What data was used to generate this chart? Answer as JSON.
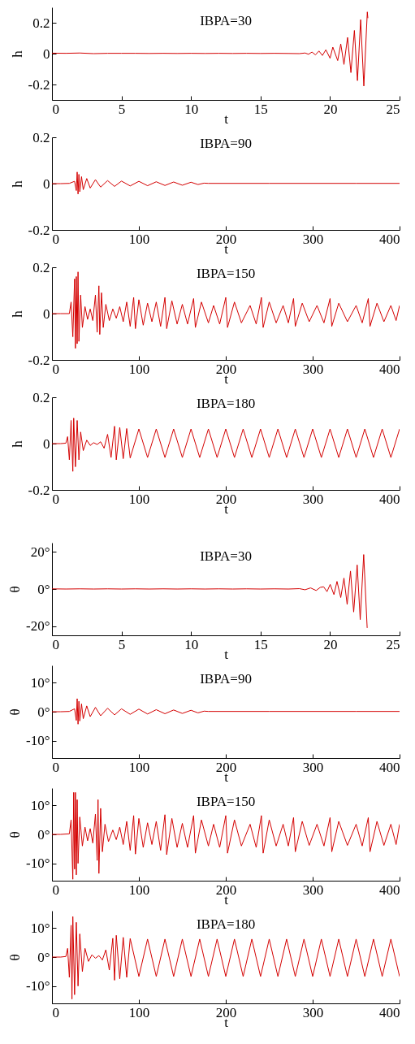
{
  "chart_data": [
    {
      "type": "line",
      "title": "IBPA=30",
      "xlabel": "t",
      "ylabel": "h",
      "xlim": [
        0,
        25
      ],
      "xticks": [
        0,
        5,
        10,
        15,
        20,
        25
      ],
      "ylim": [
        -0.3,
        0.3
      ],
      "yticks": [
        -0.2,
        0,
        0.2
      ],
      "legend": false,
      "grid": false,
      "x": [
        0,
        1,
        2,
        3,
        4,
        5,
        6,
        7,
        8,
        9,
        10,
        11,
        12,
        13,
        14,
        15,
        16,
        17,
        17.8,
        18.2,
        18.45,
        18.7,
        18.95,
        19.2,
        19.45,
        19.7,
        20.0,
        20.2,
        20.55,
        20.77,
        21.0,
        21.26,
        21.5,
        21.75,
        21.97,
        22.2,
        22.43,
        22.68,
        22.72
      ],
      "series": [
        {
          "color": "#d40000",
          "values": [
            0.003,
            0.002,
            0.004,
            0,
            0.002,
            0.002,
            0.002,
            0.001,
            0.002,
            0.001,
            0.002,
            0.001,
            0.002,
            0.001,
            0.002,
            0.001,
            0.002,
            0.001,
            0,
            0.004,
            -0.004,
            0.01,
            -0.008,
            0.017,
            -0.012,
            0.025,
            -0.03,
            0.042,
            -0.045,
            0.063,
            -0.07,
            0.105,
            -0.123,
            0.15,
            -0.175,
            0.22,
            -0.21,
            0.27,
            0.23
          ]
        }
      ]
    },
    {
      "type": "line",
      "title": "IBPA=90",
      "xlabel": "t",
      "ylabel": "h",
      "xlim": [
        0,
        400
      ],
      "xticks": [
        0,
        100,
        200,
        300,
        400
      ],
      "ylim": [
        -0.2,
        0.2
      ],
      "yticks": [
        -0.2,
        0,
        0.2
      ],
      "legend": false,
      "grid": false,
      "x": [
        0,
        10,
        20,
        26,
        28,
        29,
        30,
        31,
        32,
        34,
        36,
        40,
        44,
        50,
        56,
        64,
        72,
        80,
        90,
        100,
        110,
        120,
        130,
        140,
        150,
        160,
        168,
        175,
        180,
        200,
        250,
        300,
        350,
        400
      ],
      "series": [
        {
          "color": "#d40000",
          "values": [
            0,
            0,
            0.001,
            0.01,
            -0.03,
            0.05,
            -0.045,
            0.04,
            -0.035,
            0.03,
            -0.026,
            0.022,
            -0.019,
            0.017,
            -0.015,
            0.013,
            -0.012,
            0.011,
            -0.01,
            0.01,
            -0.009,
            0.008,
            -0.008,
            0.007,
            -0.007,
            0.006,
            -0.004,
            0.002,
            0.001,
            0.001,
            0.001,
            0.001,
            0.001,
            0.001
          ]
        }
      ]
    },
    {
      "type": "line",
      "title": "IBPA=150",
      "xlabel": "t",
      "ylabel": "h",
      "xlim": [
        0,
        400
      ],
      "xticks": [
        0,
        100,
        200,
        300,
        400
      ],
      "ylim": [
        -0.2,
        0.2
      ],
      "yticks": [
        -0.2,
        0,
        0.2
      ],
      "legend": false,
      "grid": false,
      "x": [
        0,
        10,
        20,
        22,
        24,
        26,
        27,
        28,
        29,
        30,
        31,
        33,
        35,
        38,
        41,
        44,
        47,
        50,
        52,
        54,
        55,
        57,
        59,
        62,
        66,
        70,
        74,
        78,
        82,
        86,
        90,
        94,
        96,
        100,
        105,
        110,
        115,
        120,
        125,
        130,
        132,
        138,
        144,
        150,
        156,
        163,
        165,
        172,
        180,
        186,
        193,
        200,
        202,
        210,
        218,
        228,
        235,
        241,
        243,
        250,
        258,
        266,
        272,
        278,
        280,
        288,
        296,
        305,
        313,
        320,
        322,
        330,
        340,
        350,
        357,
        364,
        366,
        374,
        382,
        390,
        396,
        400
      ],
      "series": [
        {
          "color": "#d40000",
          "values": [
            0,
            0,
            0,
            0.05,
            -0.1,
            0.15,
            -0.15,
            0.16,
            -0.13,
            0.18,
            -0.12,
            0.08,
            -0.06,
            0.03,
            -0.025,
            0.02,
            -0.03,
            0.08,
            -0.08,
            0.12,
            -0.09,
            0.09,
            -0.06,
            0.04,
            -0.03,
            0.02,
            -0.02,
            0.03,
            -0.035,
            0.05,
            -0.055,
            0.07,
            -0.065,
            0.06,
            -0.05,
            0.045,
            -0.035,
            0.05,
            -0.055,
            0.07,
            -0.065,
            0.055,
            -0.045,
            0.04,
            -0.045,
            0.065,
            -0.06,
            0.05,
            -0.04,
            0.035,
            -0.045,
            0.07,
            -0.06,
            0.05,
            -0.04,
            0.035,
            -0.045,
            0.07,
            -0.06,
            0.05,
            -0.04,
            0.035,
            -0.04,
            0.065,
            -0.055,
            0.045,
            -0.035,
            0.035,
            -0.04,
            0.065,
            -0.055,
            0.045,
            -0.035,
            0.035,
            -0.04,
            0.065,
            -0.055,
            0.045,
            -0.035,
            0.035,
            -0.03,
            0.035
          ]
        }
      ]
    },
    {
      "type": "line",
      "title": "IBPA=180",
      "xlabel": "t",
      "ylabel": "h",
      "xlim": [
        0,
        400
      ],
      "xticks": [
        0,
        100,
        200,
        300,
        400
      ],
      "ylim": [
        -0.2,
        0.2
      ],
      "yticks": [
        -0.2,
        0,
        0.2
      ],
      "legend": false,
      "grid": false,
      "x": [
        0,
        10,
        16,
        18,
        20,
        22,
        24,
        25,
        27,
        29,
        31,
        33,
        36,
        40,
        44,
        48,
        52,
        56,
        60,
        64,
        68,
        72,
        74,
        78,
        82,
        86,
        90,
        100,
        110,
        120,
        130,
        140,
        150,
        160,
        170,
        180,
        190,
        200,
        210,
        220,
        230,
        240,
        250,
        260,
        270,
        280,
        290,
        300,
        310,
        320,
        330,
        340,
        350,
        360,
        370,
        380,
        390,
        400
      ],
      "series": [
        {
          "color": "#d40000",
          "values": [
            0,
            0,
            0.002,
            0.03,
            -0.07,
            0.1,
            -0.12,
            0.11,
            -0.1,
            0.1,
            -0.07,
            0.05,
            -0.03,
            0.015,
            -0.008,
            0.004,
            -0.004,
            0.008,
            -0.02,
            0.04,
            -0.06,
            0.075,
            -0.07,
            0.07,
            -0.065,
            0.065,
            -0.062,
            0.063,
            -0.06,
            0.063,
            -0.06,
            0.063,
            -0.06,
            0.063,
            -0.06,
            0.063,
            -0.06,
            0.063,
            -0.06,
            0.063,
            -0.06,
            0.063,
            -0.06,
            0.063,
            -0.06,
            0.063,
            -0.06,
            0.063,
            -0.06,
            0.063,
            -0.06,
            0.063,
            -0.06,
            0.063,
            -0.06,
            0.063,
            -0.06,
            0.063
          ]
        }
      ]
    },
    {
      "type": "line",
      "title": "IBPA=30",
      "xlabel": "t",
      "ylabel": "θ",
      "xlim": [
        0,
        25
      ],
      "xticks": [
        0,
        5,
        10,
        15,
        20,
        25
      ],
      "ylim": [
        -25,
        25
      ],
      "yticks": [
        {
          "value": -20,
          "label": "-20°"
        },
        {
          "value": 0,
          "label": "0°"
        },
        {
          "value": 20,
          "label": "20°"
        }
      ],
      "legend": false,
      "grid": false,
      "x": [
        0,
        1,
        2,
        3,
        4,
        5,
        6,
        7,
        8,
        9,
        10,
        11,
        12,
        13,
        14,
        15,
        16,
        17,
        17.8,
        18.2,
        18.6,
        19.0,
        19.3,
        19.54,
        19.78,
        20.01,
        20.28,
        20.5,
        20.77,
        21.0,
        21.23,
        21.47,
        21.7,
        21.95,
        22.17,
        22.42,
        22.67
      ],
      "series": [
        {
          "color": "#d40000",
          "values": [
            0.1,
            0,
            0.1,
            0,
            0.1,
            0,
            0.1,
            0,
            0.1,
            0,
            0.1,
            0,
            0.1,
            0,
            0.1,
            0,
            0.1,
            0,
            0.2,
            -0.4,
            0.6,
            -0.8,
            0.9,
            1.2,
            -1.4,
            2.5,
            -3,
            4.1,
            -4.6,
            5.9,
            -8.3,
            9.7,
            -12.4,
            13,
            -16.5,
            18.6,
            -21
          ]
        }
      ]
    },
    {
      "type": "line",
      "title": "IBPA=90",
      "xlabel": "t",
      "ylabel": "θ",
      "xlim": [
        0,
        400
      ],
      "xticks": [
        0,
        100,
        200,
        300,
        400
      ],
      "ylim": [
        -16,
        16
      ],
      "yticks": [
        {
          "value": -10,
          "label": "-10°"
        },
        {
          "value": 0,
          "label": "0°"
        },
        {
          "value": 10,
          "label": "10°"
        }
      ],
      "legend": false,
      "grid": false,
      "x": [
        0,
        10,
        20,
        26,
        28,
        29,
        30,
        31,
        32,
        34,
        36,
        40,
        44,
        50,
        56,
        64,
        72,
        80,
        90,
        100,
        110,
        120,
        130,
        140,
        150,
        160,
        168,
        175,
        180,
        200,
        250,
        300,
        350,
        400
      ],
      "series": [
        {
          "color": "#d40000",
          "values": [
            0,
            0,
            0.1,
            1,
            -3,
            4.5,
            -4.3,
            3.6,
            -3.2,
            2.7,
            -2.4,
            2,
            -1.7,
            1.5,
            -1.4,
            1.2,
            -1.1,
            1,
            -0.9,
            0.9,
            -0.8,
            0.7,
            -0.7,
            0.6,
            -0.6,
            0.5,
            -0.4,
            0.2,
            0.1,
            0.1,
            0.1,
            0.1,
            0.1,
            0.1
          ]
        }
      ]
    },
    {
      "type": "line",
      "title": "IBPA=150",
      "xlabel": "t",
      "ylabel": "θ",
      "xlim": [
        0,
        400
      ],
      "xticks": [
        0,
        100,
        200,
        300,
        400
      ],
      "ylim": [
        -16,
        16
      ],
      "yticks": [
        {
          "value": -10,
          "label": "-10°"
        },
        {
          "value": 0,
          "label": "0°"
        },
        {
          "value": 10,
          "label": "10°"
        }
      ],
      "legend": false,
      "grid": false,
      "x": [
        0,
        10,
        20,
        22,
        24,
        25,
        26,
        27,
        28,
        29,
        30,
        32,
        35,
        38,
        41,
        44,
        47,
        50,
        52,
        53,
        54,
        56,
        58,
        61,
        65,
        70,
        74,
        78,
        82,
        86,
        90,
        94,
        96,
        100,
        105,
        110,
        115,
        120,
        125,
        130,
        132,
        138,
        144,
        150,
        156,
        163,
        165,
        172,
        180,
        186,
        193,
        200,
        202,
        210,
        218,
        228,
        235,
        241,
        243,
        250,
        258,
        266,
        272,
        278,
        280,
        288,
        296,
        305,
        313,
        320,
        322,
        330,
        340,
        350,
        357,
        364,
        366,
        374,
        382,
        390,
        396,
        400
      ],
      "series": [
        {
          "color": "#d40000",
          "values": [
            0,
            0,
            0.2,
            5,
            -15.5,
            14.5,
            -12,
            14.5,
            -14,
            12,
            -10,
            6,
            -4,
            2.5,
            -2.2,
            2,
            -3,
            7,
            -9,
            12,
            -13.5,
            9,
            -6,
            3.5,
            -2.5,
            1.5,
            -1.8,
            2.5,
            -3.5,
            4.5,
            -5.5,
            6.5,
            -6.8,
            5.5,
            -4.5,
            4,
            -3.5,
            4.5,
            -5.5,
            6.8,
            -7,
            5.5,
            -4.5,
            3.8,
            -4.5,
            6.5,
            -6.5,
            5,
            -4,
            3.5,
            -4.5,
            6.5,
            -6.5,
            5,
            -4,
            3.5,
            -4.5,
            6.5,
            -6.5,
            5,
            -4,
            3.5,
            -4,
            5.8,
            -6,
            4.5,
            -3.8,
            3.5,
            -4,
            5.8,
            -6,
            4.5,
            -3.8,
            3.5,
            -4,
            5.8,
            -6,
            4.5,
            -3.8,
            3.5,
            -3.5,
            3.5
          ]
        }
      ]
    },
    {
      "type": "line",
      "title": "IBPA=180",
      "xlabel": "t",
      "ylabel": "θ",
      "xlim": [
        0,
        400
      ],
      "xticks": [
        0,
        100,
        200,
        300,
        400
      ],
      "ylim": [
        -16,
        16
      ],
      "yticks": [
        {
          "value": -10,
          "label": "-10°"
        },
        {
          "value": 0,
          "label": "0°"
        },
        {
          "value": 10,
          "label": "10°"
        }
      ],
      "legend": false,
      "grid": false,
      "x": [
        0,
        10,
        16,
        18,
        20,
        22,
        23,
        24,
        26,
        28,
        30,
        32,
        35,
        38,
        42,
        46,
        50,
        54,
        58,
        62,
        66,
        70,
        72,
        74,
        78,
        82,
        86,
        90,
        100,
        110,
        120,
        130,
        140,
        150,
        160,
        170,
        180,
        190,
        200,
        210,
        220,
        230,
        240,
        250,
        260,
        270,
        280,
        290,
        300,
        310,
        320,
        330,
        340,
        350,
        360,
        370,
        380,
        390,
        400
      ],
      "series": [
        {
          "color": "#d40000",
          "values": [
            0,
            0,
            0.2,
            3,
            -7,
            11,
            -14.5,
            14,
            -13,
            12,
            -10,
            8,
            -5,
            3,
            -1.5,
            0.8,
            -0.4,
            0.5,
            -1,
            2.5,
            -4.5,
            6.5,
            -8,
            7.5,
            -7.5,
            6.8,
            -7,
            6.4,
            -6.7,
            6.2,
            -6.7,
            6.2,
            -6.7,
            6.2,
            -6.7,
            6.2,
            -6.7,
            6.2,
            -6.7,
            6.2,
            -6.7,
            6.2,
            -6.7,
            6.2,
            -6.7,
            6.2,
            -6.7,
            6.2,
            -6.7,
            6.2,
            -6.7,
            6.2,
            -6.7,
            6.2,
            -6.7,
            6.2,
            -6.7,
            6.2,
            -6.7
          ]
        }
      ]
    }
  ]
}
